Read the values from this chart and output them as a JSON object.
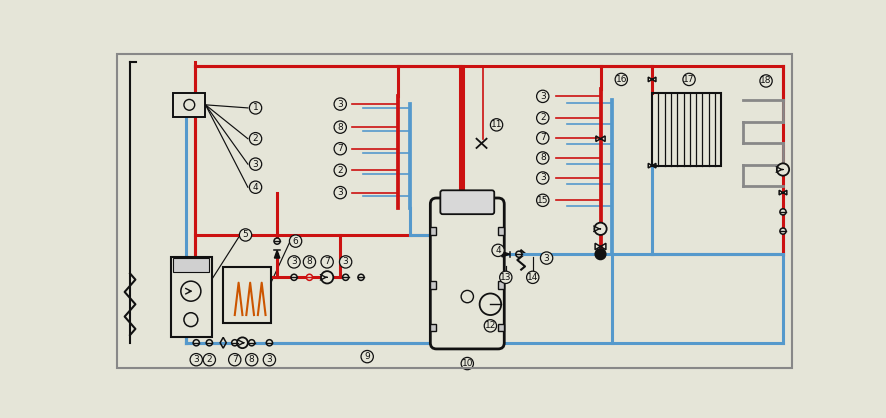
{
  "bg_color": "#e5e5d8",
  "red": "#cc1111",
  "blue": "#5599cc",
  "dark": "#111111",
  "gray": "#777777",
  "fig_width": 8.87,
  "fig_height": 4.18
}
